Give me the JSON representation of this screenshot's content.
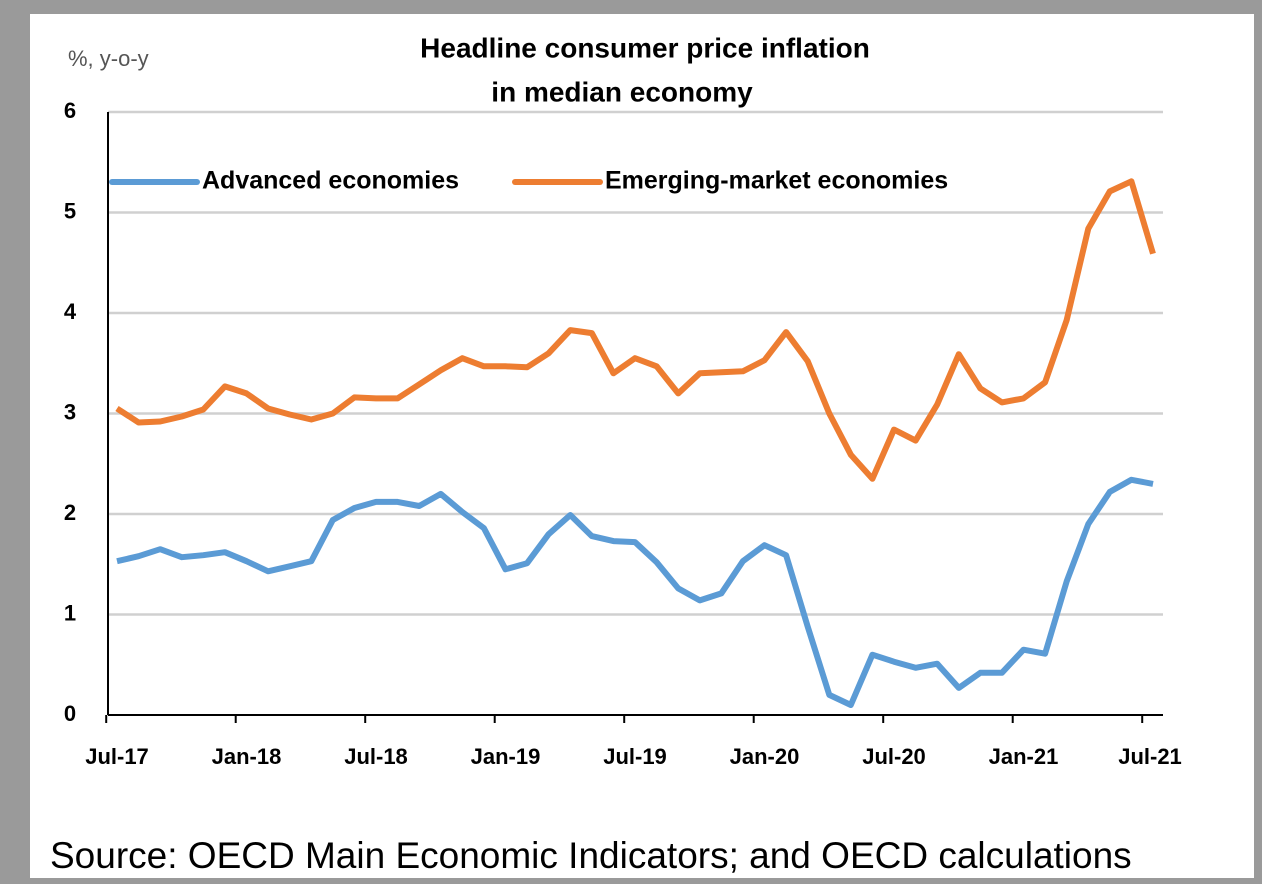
{
  "chart_data": {
    "type": "line",
    "title": [
      "Headline consumer price inflation",
      "in median economy"
    ],
    "y_label": "%, y-o-y",
    "source": "Source: OECD Main Economic Indicators; and OECD calculations",
    "categories": [
      "Jul-17",
      null,
      null,
      null,
      null,
      null,
      "Jan-18",
      null,
      null,
      null,
      null,
      null,
      "Jul-18",
      null,
      null,
      null,
      null,
      null,
      "Jan-19",
      null,
      null,
      null,
      null,
      null,
      "Jul-19",
      null,
      null,
      null,
      null,
      null,
      "Jan-20",
      null,
      null,
      null,
      null,
      null,
      "Jul-20",
      null,
      null,
      null,
      null,
      null,
      "Jan-21",
      null,
      null,
      null,
      null,
      null,
      "Jul-21"
    ],
    "series": [
      {
        "name": "Advanced economies",
        "color": "#5b9bd5",
        "values": [
          1.53,
          1.58,
          1.65,
          1.57,
          1.59,
          1.62,
          1.53,
          1.43,
          1.48,
          1.53,
          1.94,
          2.06,
          2.12,
          2.12,
          2.08,
          2.2,
          2.02,
          1.86,
          1.45,
          1.51,
          1.8,
          1.99,
          1.78,
          1.73,
          1.72,
          1.52,
          1.26,
          1.14,
          1.21,
          1.53,
          1.69,
          1.59,
          0.88,
          0.2,
          0.1,
          0.6,
          0.53,
          0.47,
          0.51,
          0.27,
          0.42,
          0.42,
          0.65,
          0.61,
          1.33,
          1.9,
          2.22,
          2.34,
          2.3
        ]
      },
      {
        "name": "Emerging-market economies",
        "color": "#ed7d31",
        "values": [
          3.05,
          2.91,
          2.92,
          2.97,
          3.04,
          3.27,
          3.2,
          3.05,
          2.99,
          2.94,
          3.0,
          3.16,
          3.15,
          3.15,
          3.29,
          3.43,
          3.55,
          3.47,
          3.47,
          3.46,
          3.6,
          3.83,
          3.8,
          3.4,
          3.55,
          3.47,
          3.2,
          3.4,
          3.41,
          3.42,
          3.53,
          3.81,
          3.52,
          3.0,
          2.59,
          2.35,
          2.84,
          2.73,
          3.09,
          3.59,
          3.25,
          3.11,
          3.15,
          3.31,
          3.93,
          4.84,
          5.21,
          5.31,
          4.59
        ]
      }
    ],
    "ylim": [
      0,
      6
    ],
    "yticks": [
      0,
      1,
      2,
      3,
      4,
      5,
      6
    ],
    "grid": true,
    "legend": "top"
  }
}
